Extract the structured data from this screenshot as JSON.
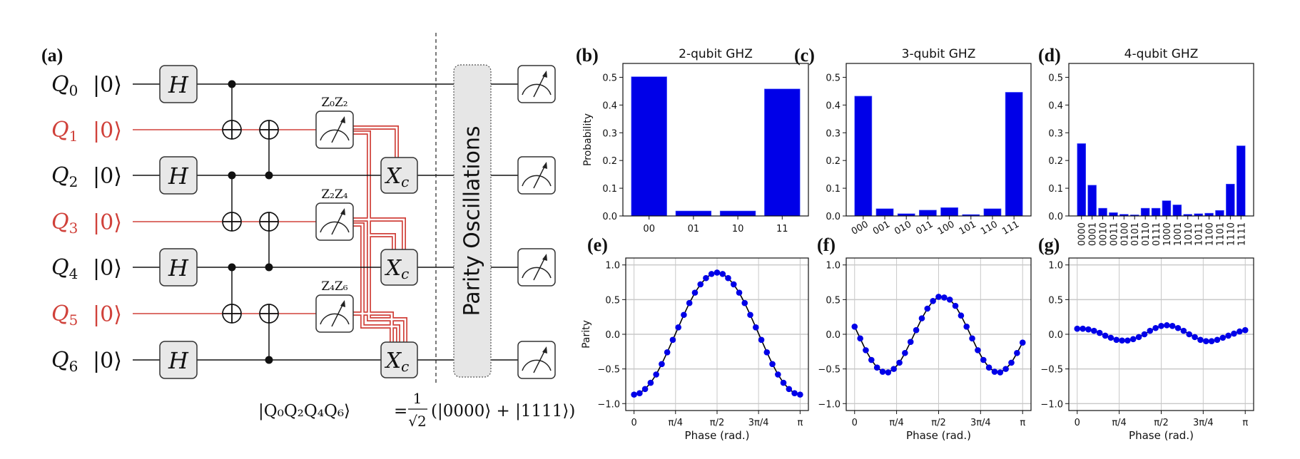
{
  "circuit": {
    "panel_label": "(a)",
    "qubits": [
      {
        "name": "Q",
        "index": "0",
        "state": "|0⟩",
        "role": "data"
      },
      {
        "name": "Q",
        "index": "1",
        "state": "|0⟩",
        "role": "ancilla"
      },
      {
        "name": "Q",
        "index": "2",
        "state": "|0⟩",
        "role": "data"
      },
      {
        "name": "Q",
        "index": "3",
        "state": "|0⟩",
        "role": "ancilla"
      },
      {
        "name": "Q",
        "index": "4",
        "state": "|0⟩",
        "role": "data"
      },
      {
        "name": "Q",
        "index": "5",
        "state": "|0⟩",
        "role": "ancilla"
      },
      {
        "name": "Q",
        "index": "6",
        "state": "|0⟩",
        "role": "data"
      }
    ],
    "hadamard_label": "H",
    "stabilizer_labels": [
      "Z₀Z₂",
      "Z₂Z₄",
      "Z₄Z₆"
    ],
    "correction_label": "X",
    "correction_sub": "c",
    "parity_box_label": "Parity Oscillations",
    "formula": {
      "lhs": "|Q₀Q₂Q₄Q₆⟩",
      "eq": "=",
      "num": "1",
      "den": "√2",
      "rhs": "(|0000⟩ + |1111⟩)"
    },
    "colors": {
      "ancilla": "#d0413a",
      "data": "#111111",
      "gate_fill": "#e8e8e8"
    }
  },
  "chart_data": [
    {
      "panel_label": "(b)",
      "type": "bar",
      "title": "2-qubit GHZ",
      "ylabel": "Probability",
      "categories": [
        "00",
        "01",
        "10",
        "11"
      ],
      "values": [
        0.502,
        0.018,
        0.018,
        0.458
      ],
      "ylim": [
        0,
        0.55
      ],
      "yticks": [
        0.0,
        0.1,
        0.2,
        0.3,
        0.4,
        0.5
      ],
      "color": "#0000e8",
      "grid": false
    },
    {
      "panel_label": "(c)",
      "type": "bar",
      "title": "3-qubit GHZ",
      "ylabel": "",
      "categories": [
        "000",
        "001",
        "010",
        "011",
        "100",
        "101",
        "110",
        "111"
      ],
      "values": [
        0.432,
        0.026,
        0.008,
        0.021,
        0.03,
        0.005,
        0.026,
        0.446
      ],
      "ylim": [
        0,
        0.55
      ],
      "yticks": [
        0.0,
        0.1,
        0.2,
        0.3,
        0.4,
        0.5
      ],
      "color": "#0000e8",
      "grid": false
    },
    {
      "panel_label": "(d)",
      "type": "bar",
      "title": "4-qubit GHZ",
      "ylabel": "",
      "categories": [
        "0000",
        "0001",
        "0010",
        "0011",
        "0100",
        "0101",
        "0110",
        "0111",
        "1000",
        "1001",
        "1010",
        "1011",
        "1100",
        "1101",
        "1110",
        "1111"
      ],
      "values": [
        0.261,
        0.111,
        0.028,
        0.012,
        0.006,
        0.004,
        0.028,
        0.028,
        0.055,
        0.04,
        0.006,
        0.008,
        0.01,
        0.02,
        0.115,
        0.253
      ],
      "ylim": [
        0,
        0.55
      ],
      "yticks": [
        0.0,
        0.1,
        0.2,
        0.3,
        0.4,
        0.5
      ],
      "color": "#0000e8",
      "grid": false
    },
    {
      "panel_label": "(e)",
      "type": "line",
      "title": "",
      "xlabel": "Phase (rad.)",
      "ylabel": "Parity",
      "x": [
        0,
        0.105,
        0.209,
        0.314,
        0.419,
        0.524,
        0.628,
        0.733,
        0.838,
        0.942,
        1.047,
        1.152,
        1.257,
        1.361,
        1.466,
        1.571,
        1.676,
        1.78,
        1.885,
        1.99,
        2.094,
        2.199,
        2.304,
        2.409,
        2.513,
        2.618,
        2.723,
        2.827,
        2.932,
        3.037,
        3.142
      ],
      "y": [
        -0.87,
        -0.85,
        -0.79,
        -0.7,
        -0.58,
        -0.43,
        -0.26,
        -0.08,
        0.1,
        0.28,
        0.45,
        0.6,
        0.72,
        0.81,
        0.87,
        0.89,
        0.87,
        0.81,
        0.72,
        0.6,
        0.45,
        0.28,
        0.1,
        -0.08,
        -0.26,
        -0.43,
        -0.58,
        -0.7,
        -0.79,
        -0.85,
        -0.87
      ],
      "xlim": [
        -0.157,
        3.299
      ],
      "ylim": [
        -1.1,
        1.1
      ],
      "xticks": [
        0,
        0.785,
        1.571,
        2.356,
        3.142
      ],
      "xtick_labels": [
        "0",
        "π/4",
        "π/2",
        "3π/4",
        "π"
      ],
      "yticks": [
        -1.0,
        -0.5,
        0.0,
        0.5,
        1.0
      ],
      "point_color": "#0000e8",
      "fit_color": "#000000",
      "grid": true
    },
    {
      "panel_label": "(f)",
      "type": "line",
      "title": "",
      "xlabel": "Phase (rad.)",
      "ylabel": "",
      "x": [
        0,
        0.105,
        0.209,
        0.314,
        0.419,
        0.524,
        0.628,
        0.733,
        0.838,
        0.942,
        1.047,
        1.152,
        1.257,
        1.361,
        1.466,
        1.571,
        1.676,
        1.78,
        1.885,
        1.99,
        2.094,
        2.199,
        2.304,
        2.409,
        2.513,
        2.618,
        2.723,
        2.827,
        2.932,
        3.037,
        3.142
      ],
      "y": [
        0.11,
        -0.06,
        -0.23,
        -0.37,
        -0.48,
        -0.54,
        -0.55,
        -0.5,
        -0.41,
        -0.27,
        -0.11,
        0.06,
        0.23,
        0.37,
        0.48,
        0.54,
        0.53,
        0.5,
        0.41,
        0.27,
        0.11,
        -0.06,
        -0.23,
        -0.37,
        -0.48,
        -0.54,
        -0.55,
        -0.5,
        -0.41,
        -0.27,
        -0.12
      ],
      "xlim": [
        -0.157,
        3.299
      ],
      "ylim": [
        -1.1,
        1.1
      ],
      "xticks": [
        0,
        0.785,
        1.571,
        2.356,
        3.142
      ],
      "xtick_labels": [
        "0",
        "π/4",
        "π/2",
        "3π/4",
        "π"
      ],
      "yticks": [
        -1.0,
        -0.5,
        0.0,
        0.5,
        1.0
      ],
      "point_color": "#0000e8",
      "fit_color": "#000000",
      "grid": true
    },
    {
      "panel_label": "(g)",
      "type": "line",
      "title": "",
      "xlabel": "Phase (rad.)",
      "ylabel": "",
      "x": [
        0,
        0.105,
        0.209,
        0.314,
        0.419,
        0.524,
        0.628,
        0.733,
        0.838,
        0.942,
        1.047,
        1.152,
        1.257,
        1.361,
        1.466,
        1.571,
        1.676,
        1.78,
        1.885,
        1.99,
        2.094,
        2.199,
        2.304,
        2.409,
        2.513,
        2.618,
        2.723,
        2.827,
        2.932,
        3.037,
        3.142
      ],
      "y": [
        0.08,
        0.08,
        0.07,
        0.05,
        0.02,
        -0.02,
        -0.05,
        -0.08,
        -0.09,
        -0.09,
        -0.07,
        -0.04,
        0.0,
        0.05,
        0.09,
        0.12,
        0.13,
        0.12,
        0.09,
        0.05,
        0.0,
        -0.04,
        -0.08,
        -0.1,
        -0.1,
        -0.08,
        -0.05,
        -0.02,
        0.01,
        0.04,
        0.06
      ],
      "xlim": [
        -0.157,
        3.299
      ],
      "ylim": [
        -1.1,
        1.1
      ],
      "xticks": [
        0,
        0.785,
        1.571,
        2.356,
        3.142
      ],
      "xtick_labels": [
        "0",
        "π/4",
        "π/2",
        "3π/4",
        "π"
      ],
      "yticks": [
        -1.0,
        -0.5,
        0.0,
        0.5,
        1.0
      ],
      "point_color": "#0000e8",
      "fit_color": "#000000",
      "grid": true
    }
  ]
}
